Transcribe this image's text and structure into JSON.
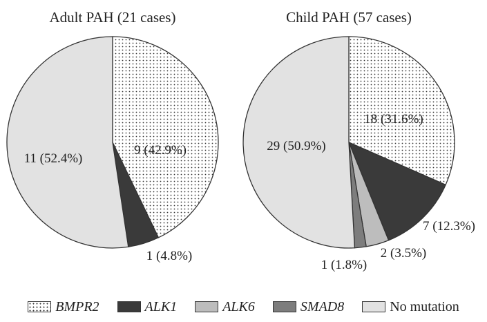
{
  "chart_data": [
    {
      "type": "pie",
      "title": "Adult PAH (21 cases)",
      "slices": [
        {
          "category": "BMPR2",
          "count": 9,
          "label": "9 (42.9%)"
        },
        {
          "category": "ALK1",
          "count": 1,
          "label": "1 (4.8%)"
        },
        {
          "category": "No mutation",
          "count": 11,
          "label": "11 (52.4%)"
        }
      ]
    },
    {
      "type": "pie",
      "title": "Child PAH (57 cases)",
      "slices": [
        {
          "category": "BMPR2",
          "count": 18,
          "label": "18 (31.6%)"
        },
        {
          "category": "ALK1",
          "count": 7,
          "label": "7 (12.3%)"
        },
        {
          "category": "ALK6",
          "count": 2,
          "label": "2 (3.5%)"
        },
        {
          "category": "SMAD8",
          "count": 1,
          "label": "1 (1.8%)"
        },
        {
          "category": "No mutation",
          "count": 29,
          "label": "29 (50.9%)"
        }
      ]
    }
  ],
  "legend": [
    {
      "category": "BMPR2",
      "label": "BMPR2",
      "italic": true,
      "fill": "dots"
    },
    {
      "category": "ALK1",
      "label": "ALK1",
      "italic": true,
      "fill": "#3a3a3a"
    },
    {
      "category": "ALK6",
      "label": "ALK6",
      "italic": true,
      "fill": "#bdbdbd"
    },
    {
      "category": "SMAD8",
      "label": "SMAD8",
      "italic": true,
      "fill": "#7d7d7d"
    },
    {
      "category": "No mutation",
      "label": "No mutation",
      "italic": false,
      "fill": "#e2e2e2"
    }
  ],
  "colors": {
    "BMPR2": "dots",
    "ALK1": "#3a3a3a",
    "ALK6": "#bdbdbd",
    "SMAD8": "#7d7d7d",
    "No mutation": "#e2e2e2",
    "outline": "#333333"
  },
  "legend_placement": "bottom"
}
